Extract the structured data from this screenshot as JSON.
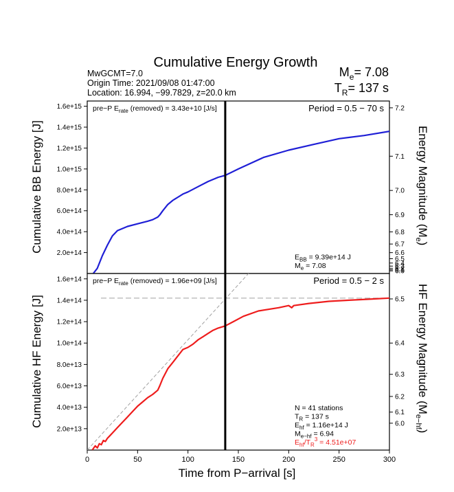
{
  "title": "Cumulative Energy Growth",
  "event": {
    "line1": "MwGCMT=7.0",
    "line2": "Origin Time: 2021/09/08 01:47:00",
    "line3": "Location: 16.994, −99.7829, z=20.0 km"
  },
  "summary": {
    "me_label": "M",
    "me_sub": "e",
    "me_value": "= 7.08",
    "tr_label": "T",
    "tr_sub": "R",
    "tr_value": "= 137 s"
  },
  "colors": {
    "bb": "#1f1fd6",
    "hf": "#ee1c1c",
    "ref": "#a0a0a0",
    "marker": "#000000"
  },
  "chart_data": [
    {
      "type": "line",
      "name": "bb-panel",
      "ylabel": "Cumulative BB Energy [J]",
      "y2label_main": "Energy Magnitude (M",
      "y2label_sub": "e",
      "y2label_end": ")",
      "ylim": [
        0,
        1650000000000000.0
      ],
      "xlim": [
        0,
        300
      ],
      "yticks": [
        200000000000000.0,
        400000000000000.0,
        600000000000000.0,
        800000000000000.0,
        1000000000000000.0,
        1200000000000000.0,
        1400000000000000.0,
        1600000000000000.0
      ],
      "yticklabels": [
        "2.0e+14",
        "4.0e+14",
        "6.0e+14",
        "8.0e+14",
        "1.0e+15",
        "1.2e+15",
        "1.4e+15",
        "1.6e+15"
      ],
      "y2ticks": [
        6.0,
        6.1,
        6.2,
        6.3,
        6.4,
        6.5,
        6.6,
        6.7,
        6.8,
        6.9,
        7.0,
        7.1,
        7.2
      ],
      "y2ticklabels": [
        "6.0",
        "6.1",
        "6.2",
        "6.3",
        "6.4",
        "6.5",
        "6.6",
        "6.7",
        "6.8",
        "6.9",
        "7.0",
        "7.1",
        "7.2"
      ],
      "top_left_pre": "pre−P E",
      "top_left_sub": "rate",
      "top_left_post": " (removed) = 3.43e+10 [J/s]",
      "period": "Period = 0.5 − 70 s",
      "ann": [
        {
          "main": "E",
          "sub": "BB",
          "rest": " = 9.39e+14 J"
        },
        {
          "main": "M",
          "sub": "e",
          "rest": " = 7.08"
        }
      ],
      "vline_x": 137,
      "x": [
        6,
        10,
        15,
        20,
        25,
        30,
        40,
        50,
        60,
        65,
        70,
        72,
        75,
        80,
        85,
        90,
        95,
        100,
        110,
        120,
        130,
        137,
        150,
        175,
        200,
        225,
        250,
        275,
        300
      ],
      "y": [
        0,
        50000000000000.0,
        170000000000000.0,
        270000000000000.0,
        360000000000000.0,
        410000000000000.0,
        450000000000000.0,
        475000000000000.0,
        500000000000000.0,
        515000000000000.0,
        540000000000000.0,
        560000000000000.0,
        600000000000000.0,
        660000000000000.0,
        700000000000000.0,
        730000000000000.0,
        760000000000000.0,
        780000000000000.0,
        830000000000000.0,
        880000000000000.0,
        920000000000000.0,
        939000000000000.0,
        1000000000000000.0,
        1110000000000000.0,
        1180000000000000.0,
        1235000000000000.0,
        1290000000000000.0,
        1320000000000000.0,
        1360000000000000.0
      ]
    },
    {
      "type": "line",
      "name": "hf-panel",
      "ylabel": "Cumulative HF Energy [J]",
      "y2label_main": "HF Energy Magnitude (M",
      "y2label_sub": "e−hf",
      "y2label_end": ")",
      "xlabel": "Time from P−arrival [s]",
      "ylim": [
        0,
        165000000000000.0
      ],
      "xlim": [
        0,
        300
      ],
      "xticks": [
        0,
        50,
        100,
        150,
        200,
        250,
        300
      ],
      "xticklabels": [
        "0",
        "50",
        "100",
        "150",
        "200",
        "250",
        "300"
      ],
      "yticks": [
        20000000000000.0,
        40000000000000.0,
        60000000000000.0,
        80000000000000.0,
        100000000000000.0,
        120000000000000.0,
        140000000000000.0,
        160000000000000.0
      ],
      "yticklabels": [
        "2.0e+13",
        "4.0e+13",
        "6.0e+13",
        "8.0e+13",
        "1.0e+14",
        "1.2e+14",
        "1.4e+14",
        "1.6e+14"
      ],
      "y2ticks": [
        6.0,
        6.1,
        6.2,
        6.3,
        6.4,
        6.5,
        6.6,
        6.7,
        6.8,
        6.9,
        7.0
      ],
      "y2ticklabels": [
        "6.0",
        "6.1",
        "6.2",
        "6.3",
        "6.4",
        "6.5",
        "6.6",
        "6.7",
        "6.8",
        "6.9",
        "7.0"
      ],
      "top_left_pre": "pre−P E",
      "top_left_sub": "rate",
      "top_left_post": " (removed) = 1.96e+09 [J/s]",
      "period": "Period = 0.5 − 2 s",
      "ann": [
        {
          "main": "N = 41 stations",
          "sub": "",
          "rest": ""
        },
        {
          "main": "T",
          "sub": "R",
          "rest": " = 137  s"
        },
        {
          "main": "E",
          "sub": "hf",
          "rest": " = 1.16e+14 J"
        },
        {
          "main": "M",
          "sub": "e−hf",
          "rest": " = 6.94"
        }
      ],
      "ann_red": {
        "main": "E",
        "sub": "hf",
        "mid": "/T",
        "sub2": "R",
        "sup": "3",
        "rest": " =  4.51e+07"
      },
      "vline_x": 137,
      "hline_y": 142000000000000.0,
      "ref_line": {
        "x": [
          0,
          165
        ],
        "y": [
          0,
          170000000000000.0
        ]
      },
      "x": [
        5,
        8,
        10,
        12,
        14,
        16,
        18,
        20,
        22,
        25,
        28,
        30,
        35,
        40,
        45,
        50,
        55,
        60,
        65,
        70,
        72,
        75,
        80,
        85,
        90,
        95,
        100,
        105,
        110,
        115,
        120,
        125,
        130,
        137,
        145,
        155,
        170,
        190,
        200,
        203,
        205,
        220,
        240,
        260,
        280,
        300
      ],
      "y": [
        0,
        4000000000000.0,
        2000000000000.0,
        6000000000000.0,
        5000000000000.0,
        9000000000000.0,
        8000000000000.0,
        11000000000000.0,
        13000000000000.0,
        16000000000000.0,
        19000000000000.0,
        21000000000000.0,
        26000000000000.0,
        31000000000000.0,
        36000000000000.0,
        41000000000000.0,
        45000000000000.0,
        49000000000000.0,
        52000000000000.0,
        56000000000000.0,
        60000000000000.0,
        67000000000000.0,
        76000000000000.0,
        82000000000000.0,
        88000000000000.0,
        94000000000000.0,
        96000000000000.0,
        99000000000000.0,
        103000000000000.0,
        106000000000000.0,
        109000000000000.0,
        112000000000000.0,
        114000000000000.0,
        116000000000000.0,
        120000000000000.0,
        125000000000000.0,
        130000000000000.0,
        133000000000000.0,
        135000000000000.0,
        133000000000000.0,
        135000000000000.0,
        137000000000000.0,
        139000000000000.0,
        140000000000000.0,
        141000000000000.0,
        142000000000000.0
      ]
    }
  ]
}
